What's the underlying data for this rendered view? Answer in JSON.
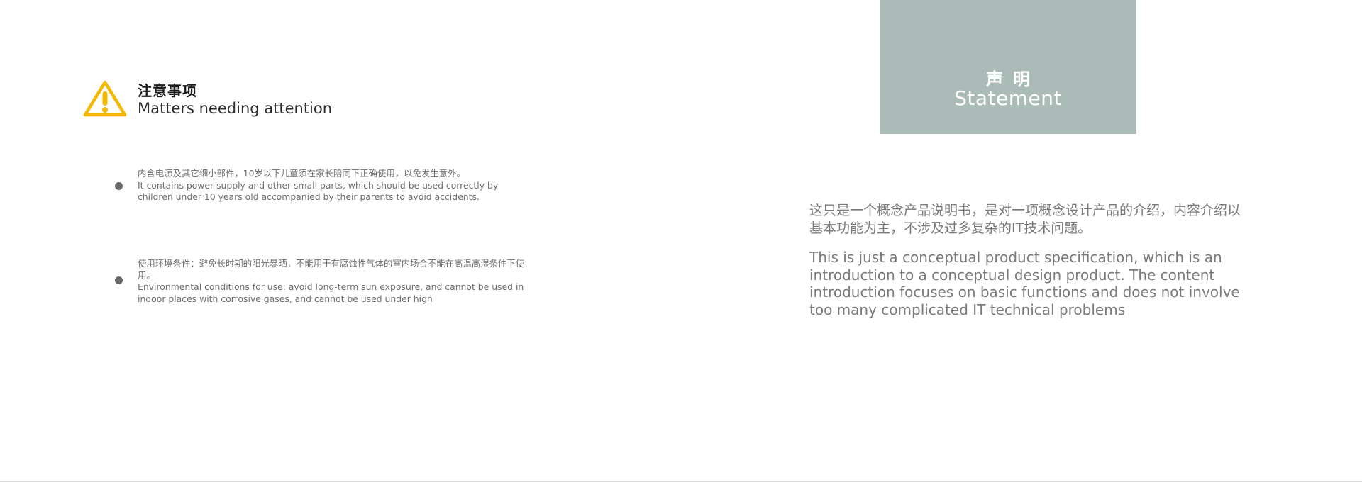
{
  "attention": {
    "title_cn": "注意事项",
    "title_en": "Matters needing attention",
    "icon": "warning-icon",
    "icon_color": "#f5b800"
  },
  "notes": [
    {
      "cn": "内含电源及其它细小部件，10岁以下儿童须在家长陪同下正确使用，以免发生意外。",
      "en": "It contains power supply and other small parts, which should be used correctly by children under 10 years old accompanied by their parents to avoid accidents."
    },
    {
      "cn": "使用环境条件：避免长时期的阳光暴晒，不能用于有腐蚀性气体的室内场合不能在高温高湿条件下使用。",
      "en": "Environmental conditions for use: avoid long-term sun exposure, and cannot be used in indoor places with corrosive gases, and cannot be used under high"
    }
  ],
  "statement": {
    "title_cn": "声明",
    "title_en": "Statement",
    "box_color": "#abbcb8",
    "body_cn": "这只是一个概念产品说明书，是对一项概念设计产品的介绍，内容介绍以基本功能为主，不涉及过多复杂的IT技术问题。",
    "body_en": "This is just a conceptual product specification, which is an introduction to a conceptual design product. The content introduction focuses on basic functions and does not involve too many complicated IT technical problems"
  }
}
